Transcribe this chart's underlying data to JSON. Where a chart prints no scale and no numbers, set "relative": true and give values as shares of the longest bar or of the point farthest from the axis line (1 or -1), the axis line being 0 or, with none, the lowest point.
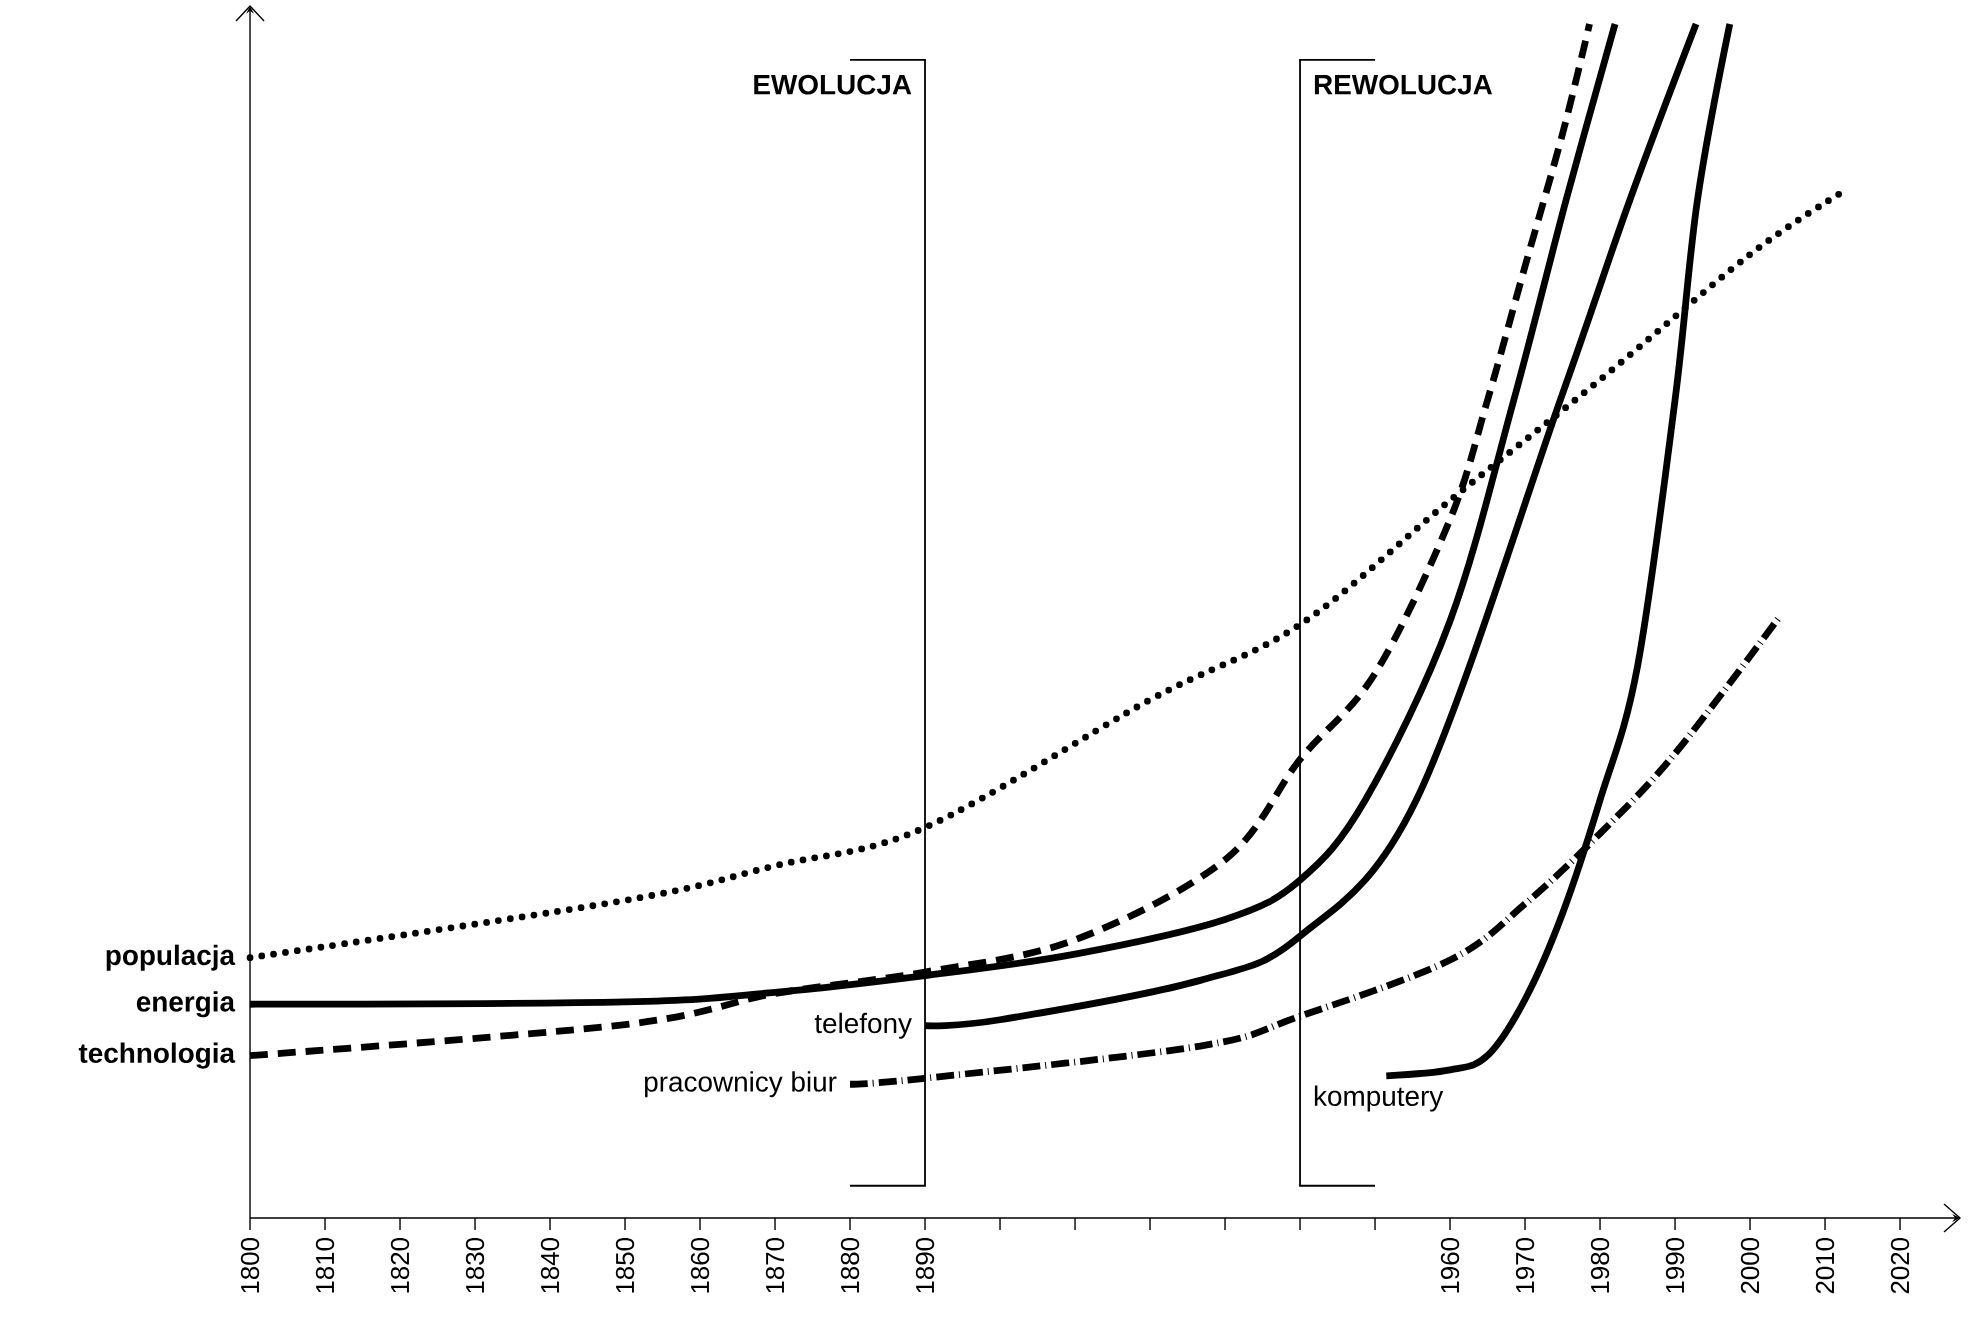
{
  "chart_data": {
    "type": "line",
    "relative": true,
    "tick_labels": "x",
    "legend": false,
    "grid": false,
    "xlim": [
      1800,
      2028
    ],
    "xticks": [
      1800,
      1810,
      1820,
      1830,
      1840,
      1850,
      1860,
      1870,
      1880,
      1890,
      {
        "value": 1900,
        "label": null
      },
      {
        "value": 1910,
        "label": null
      },
      {
        "value": 1920,
        "label": null
      },
      {
        "value": 1930,
        "label": null
      },
      {
        "value": 1940,
        "label": null
      },
      {
        "value": 1950,
        "label": null
      },
      1960,
      1970,
      1980,
      1990,
      2000,
      2010,
      2020
    ],
    "ref_lines": [
      {
        "axis": "x",
        "value": 1890,
        "label": "EWOLUCJA",
        "color": "#000000"
      },
      {
        "axis": "x",
        "value": 1940,
        "label": "REWOLUCJA",
        "color": "#000000"
      }
    ],
    "series": [
      {
        "name": "populacja",
        "color": "#000000",
        "line_style": "dotted",
        "x": [
          1800,
          1850,
          1870,
          1890,
          1920,
          1940,
          1960,
          1980,
          2000,
          2012
        ],
        "values": [
          0.218,
          0.266,
          0.295,
          0.327,
          0.434,
          0.497,
          0.601,
          0.702,
          0.807,
          0.858
        ]
      },
      {
        "name": "energia",
        "color": "#000000",
        "line_style": "solid",
        "x": [
          1800,
          1850,
          1870,
          1890,
          1910,
          1930,
          1940,
          1948.7,
          1960,
          1968.5,
          1975.5,
          1982
        ],
        "values": [
          0.179,
          0.181,
          0.189,
          0.203,
          0.221,
          0.25,
          0.283,
          0.35,
          0.5,
          0.685,
          0.853,
          1
        ]
      },
      {
        "name": "technologia",
        "color": "#000000",
        "line_style": "dashed",
        "x": [
          1800,
          1850,
          1870,
          1890,
          1910,
          1930,
          1940,
          1950,
          1960,
          1965,
          1970,
          1975,
          1978.6
        ],
        "values": [
          0.136,
          0.162,
          0.188,
          0.206,
          0.233,
          0.3,
          0.384,
          0.456,
          0.585,
          0.685,
          0.797,
          0.908,
          1
        ]
      },
      {
        "name": "telefony",
        "color": "#000000",
        "line_style": "solid",
        "x": [
          1890,
          1900,
          1926.7,
          1940,
          1955.5,
          1974.7,
          1984,
          1992.8
        ],
        "values": [
          0.161,
          0.166,
          0.199,
          0.236,
          0.35,
          0.685,
          0.853,
          1
        ]
      },
      {
        "name": "pracownicy biur",
        "color": "#000000",
        "line_style": "dashdot",
        "x": [
          1880,
          1890,
          1926.7,
          1940,
          1960,
          1970,
          1980,
          1990,
          2004
        ],
        "values": [
          0.112,
          0.117,
          0.144,
          0.169,
          0.216,
          0.263,
          0.322,
          0.389,
          0.504
        ]
      },
      {
        "name": "komputery",
        "color": "#000000",
        "line_style": "solid",
        "x": [
          1951.5,
          1960,
          1965,
          1970,
          1975,
          1980,
          1985,
          1990,
          1993,
          1997.3
        ],
        "values": [
          0.119,
          0.124,
          0.136,
          0.183,
          0.255,
          0.35,
          0.462,
          0.685,
          0.853,
          1
        ]
      }
    ]
  }
}
